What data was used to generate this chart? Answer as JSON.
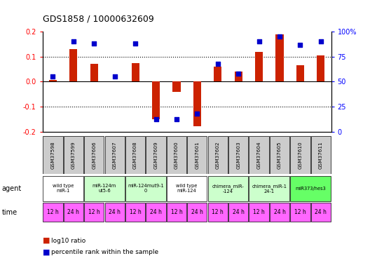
{
  "title": "GDS1858 / 10000632609",
  "samples": [
    "GSM37598",
    "GSM37599",
    "GSM37606",
    "GSM37607",
    "GSM37608",
    "GSM37609",
    "GSM37600",
    "GSM37601",
    "GSM37602",
    "GSM37603",
    "GSM37604",
    "GSM37605",
    "GSM37610",
    "GSM37611"
  ],
  "log10_ratio": [
    0.005,
    0.13,
    0.07,
    0.0,
    0.075,
    -0.15,
    -0.04,
    -0.18,
    0.06,
    0.04,
    0.12,
    0.19,
    0.065,
    0.105
  ],
  "percentile_rank": [
    55,
    90,
    88,
    55,
    88,
    12,
    12,
    18,
    68,
    58,
    90,
    95,
    87,
    90
  ],
  "ylim": [
    -0.2,
    0.2
  ],
  "y2lim": [
    0,
    100
  ],
  "yticks": [
    -0.2,
    -0.1,
    0.0,
    0.1,
    0.2
  ],
  "y2ticks": [
    0,
    25,
    50,
    75,
    100
  ],
  "agent_groups": [
    {
      "label": "wild type\nmiR-1",
      "cols": [
        0,
        1
      ],
      "color": "#ffffff"
    },
    {
      "label": "miR-124m\nut5-6",
      "cols": [
        2,
        3
      ],
      "color": "#ccffcc"
    },
    {
      "label": "miR-124mut9-1\n0",
      "cols": [
        4,
        5
      ],
      "color": "#ccffcc"
    },
    {
      "label": "wild type\nmiR-124",
      "cols": [
        6,
        7
      ],
      "color": "#ffffff"
    },
    {
      "label": "chimera_miR-\n-124",
      "cols": [
        8,
        9
      ],
      "color": "#ccffcc"
    },
    {
      "label": "chimera_miR-1\n24-1",
      "cols": [
        10,
        11
      ],
      "color": "#ccffcc"
    },
    {
      "label": "miR373/hes3",
      "cols": [
        12,
        13
      ],
      "color": "#66ff66"
    }
  ],
  "time_labels": [
    "12 h",
    "24 h",
    "12 h",
    "24 h",
    "12 h",
    "24 h",
    "12 h",
    "24 h",
    "12 h",
    "24 h",
    "12 h",
    "24 h",
    "12 h",
    "24 h"
  ],
  "time_color": "#ff66ff",
  "bar_color": "#cc2200",
  "scatter_color": "#0000cc",
  "header_bg": "#cccccc"
}
